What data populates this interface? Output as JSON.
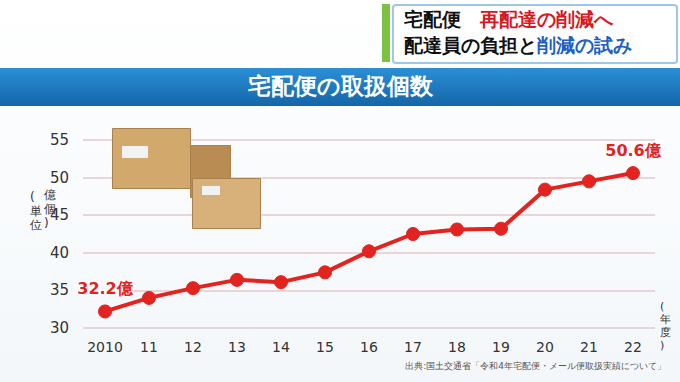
{
  "chart_data": {
    "type": "line",
    "title": "宅配便の取扱個数",
    "y_label": "(単位 億個)",
    "x_label": "(年度)",
    "categories": [
      "2010",
      "11",
      "12",
      "13",
      "14",
      "15",
      "16",
      "17",
      "18",
      "19",
      "20",
      "21",
      "22"
    ],
    "values": [
      32.2,
      34.0,
      35.3,
      36.4,
      36.1,
      37.4,
      40.2,
      42.5,
      43.1,
      43.2,
      48.4,
      49.5,
      50.6
    ],
    "value_labels": [
      "32.2億",
      null,
      null,
      null,
      null,
      null,
      null,
      null,
      null,
      null,
      null,
      null,
      "50.6億"
    ],
    "color": "#e3231f",
    "marker": "circle",
    "ylim": [
      30,
      55
    ],
    "yticks": [
      30,
      35,
      40,
      45,
      50,
      55
    ],
    "grid": true,
    "source": "出典:国土交通省「令和4年宅配便・メール便取扱実績について」"
  },
  "banner": [
    [
      "宅配便　",
      "再配達の削減へ"
    ],
    [
      "配達員の負担と",
      "削減の試み"
    ]
  ]
}
